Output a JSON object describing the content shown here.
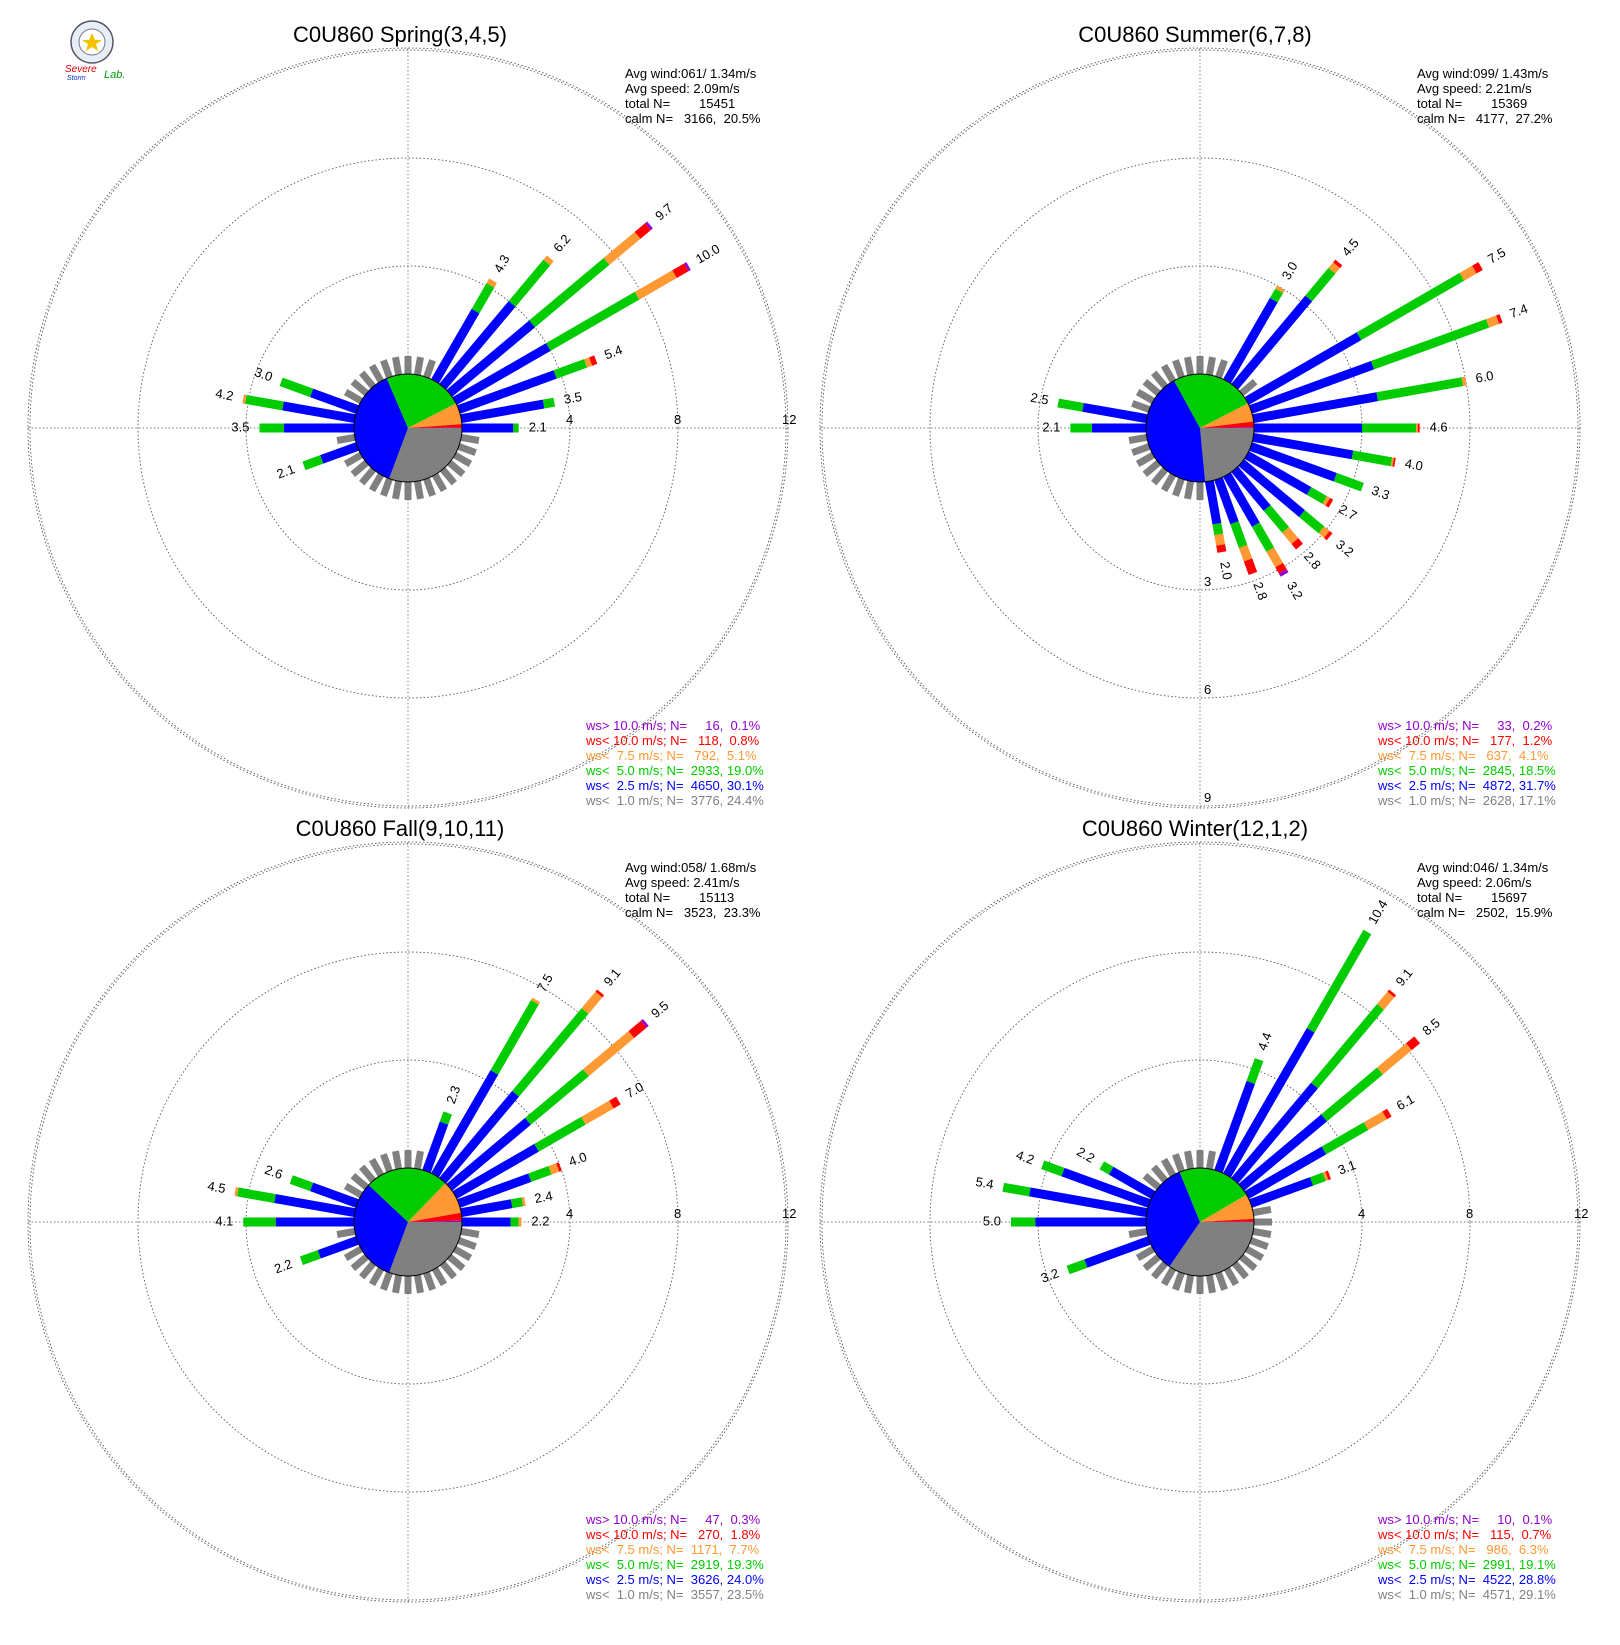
{
  "logo": {
    "name": "Severe Storm Lab.",
    "line1": "Severe",
    "line2": "Storm",
    "line3": "Lab."
  },
  "colors": {
    "gt10": "#9400D3",
    "lt10": "#FF0000",
    "lt7_5": "#FF9933",
    "lt5": "#00CC00",
    "lt2_5": "#0000FF",
    "lt1": "#808080"
  },
  "chart_data": [
    {
      "type": "wind_rose",
      "title": "C0U860 Spring(3,4,5)",
      "stats": [
        "Avg wind:061/ 1.34m/s",
        "Avg speed: 2.09m/s",
        "total N=        15451",
        "calm N=   3166,  20.5%"
      ],
      "ring_labels": [
        "4",
        "8",
        "12"
      ],
      "ring_values": [
        4,
        8,
        12
      ],
      "legend": [
        {
          "text": "ws> 10.0 m/s; N=     16,  0.1%",
          "color": "#9400D3"
        },
        {
          "text": "ws< 10.0 m/s; N=   118,  0.8%",
          "color": "#FF0000"
        },
        {
          "text": "ws<  7.5 m/s; N=   792,  5.1%",
          "color": "#FF9933"
        },
        {
          "text": "ws<  5.0 m/s; N=  2933, 19.0%",
          "color": "#00CC00"
        },
        {
          "text": "ws<  2.5 m/s; N=  4650, 30.1%",
          "color": "#0000FF"
        },
        {
          "text": "ws<  1.0 m/s; N=  3776, 24.4%",
          "color": "#808080"
        }
      ],
      "pie": [
        24.4,
        30.1,
        19.0,
        5.1,
        0.8,
        0.1
      ],
      "petals": [
        {
          "dir": 30,
          "total": 4.3,
          "label": "4.3",
          "segments": [
            3.0,
            1.1,
            0.2,
            0,
            0
          ]
        },
        {
          "dir": 40,
          "total": 6.2,
          "label": "6.2",
          "segments": [
            4.0,
            2.0,
            0.2,
            0,
            0
          ]
        },
        {
          "dir": 50,
          "total": 9.7,
          "label": "9.7",
          "segments": [
            4.0,
            3.6,
            1.5,
            0.5,
            0.1
          ]
        },
        {
          "dir": 60,
          "total": 10.0,
          "label": "10.0",
          "segments": [
            4.0,
            3.8,
            1.6,
            0.5,
            0.1
          ]
        },
        {
          "dir": 70,
          "total": 5.4,
          "label": "5.4",
          "segments": [
            3.8,
            1.2,
            0.2,
            0.2,
            0
          ]
        },
        {
          "dir": 80,
          "total": 3.5,
          "label": "3.5",
          "segments": [
            3.1,
            0.4,
            0,
            0,
            0
          ]
        },
        {
          "dir": 90,
          "total": 2.1,
          "label": "2.1",
          "segments": [
            1.9,
            0.2,
            0,
            0,
            0
          ]
        },
        {
          "dir": 270,
          "total": 3.5,
          "label": "3.5",
          "segments": [
            2.6,
            0.9,
            0,
            0,
            0
          ]
        },
        {
          "dir": 280,
          "total": 4.2,
          "label": "4.2",
          "segments": [
            2.7,
            1.4,
            0.1,
            0,
            0
          ]
        },
        {
          "dir": 290,
          "total": 3.0,
          "label": "3.0",
          "segments": [
            1.8,
            1.2,
            0,
            0,
            0
          ]
        },
        {
          "dir": 250,
          "total": 2.1,
          "label": "2.1",
          "segments": [
            1.4,
            0.7,
            0,
            0,
            0
          ]
        }
      ]
    },
    {
      "type": "wind_rose",
      "title": "C0U860 Summer(6,7,8)",
      "stats": [
        "Avg wind:099/ 1.43m/s",
        "Avg speed: 2.21m/s",
        "total N=        15369",
        "calm N=   4177,  27.2%"
      ],
      "ring_labels": [
        "3",
        "6",
        "9"
      ],
      "ring_values": [
        3,
        6,
        9
      ],
      "legend": [
        {
          "text": "ws> 10.0 m/s; N=     33,  0.2%",
          "color": "#9400D3"
        },
        {
          "text": "ws< 10.0 m/s; N=   177,  1.2%",
          "color": "#FF0000"
        },
        {
          "text": "ws<  7.5 m/s; N=   637,  4.1%",
          "color": "#FF9933"
        },
        {
          "text": "ws<  5.0 m/s; N=  2845, 18.5%",
          "color": "#00CC00"
        },
        {
          "text": "ws<  2.5 m/s; N=  4872, 31.7%",
          "color": "#0000FF"
        },
        {
          "text": "ws<  1.0 m/s; N=  2628, 17.1%",
          "color": "#808080"
        }
      ],
      "pie": [
        17.1,
        31.7,
        18.5,
        4.1,
        1.2,
        0.2
      ],
      "petals": [
        {
          "dir": 30,
          "total": 3.0,
          "label": "3.0",
          "segments": [
            2.6,
            0.3,
            0.1,
            0,
            0
          ]
        },
        {
          "dir": 40,
          "total": 4.5,
          "label": "4.5",
          "segments": [
            3.2,
            1.0,
            0.2,
            0.1,
            0
          ]
        },
        {
          "dir": 60,
          "total": 7.5,
          "label": "7.5",
          "segments": [
            3.6,
            3.3,
            0.4,
            0.2,
            0
          ]
        },
        {
          "dir": 70,
          "total": 7.4,
          "label": "7.4",
          "segments": [
            3.6,
            3.4,
            0.3,
            0.1,
            0
          ]
        },
        {
          "dir": 80,
          "total": 6.0,
          "label": "6.0",
          "segments": [
            3.5,
            2.4,
            0.1,
            0,
            0
          ]
        },
        {
          "dir": 90,
          "total": 4.6,
          "label": "4.6",
          "segments": [
            3.0,
            1.5,
            0.05,
            0.05,
            0
          ]
        },
        {
          "dir": 100,
          "total": 4.0,
          "label": "4.0",
          "segments": [
            2.8,
            1.1,
            0.05,
            0.05,
            0
          ]
        },
        {
          "dir": 110,
          "total": 3.3,
          "label": "3.3",
          "segments": [
            2.5,
            0.8,
            0,
            0,
            0
          ]
        },
        {
          "dir": 120,
          "total": 2.7,
          "label": "2.7",
          "segments": [
            2.0,
            0.5,
            0.1,
            0.1,
            0
          ]
        },
        {
          "dir": 130,
          "total": 3.2,
          "label": "3.2",
          "segments": [
            2.2,
            0.7,
            0.2,
            0.1,
            0
          ]
        },
        {
          "dir": 140,
          "total": 2.8,
          "label": "2.8",
          "segments": [
            1.4,
            0.8,
            0.4,
            0.2,
            0
          ]
        },
        {
          "dir": 150,
          "total": 3.2,
          "label": "3.2",
          "segments": [
            1.6,
            0.8,
            0.5,
            0.2,
            0.1
          ]
        },
        {
          "dir": 160,
          "total": 2.8,
          "label": "2.8",
          "segments": [
            1.3,
            0.7,
            0.4,
            0.4,
            0
          ]
        },
        {
          "dir": 170,
          "total": 2.0,
          "label": "2.0",
          "segments": [
            1.2,
            0.3,
            0.3,
            0.2,
            0
          ]
        },
        {
          "dir": 270,
          "total": 2.1,
          "label": "2.1",
          "segments": [
            1.5,
            0.6,
            0,
            0,
            0
          ]
        },
        {
          "dir": 280,
          "total": 2.5,
          "label": "2.5",
          "segments": [
            1.8,
            0.7,
            0,
            0,
            0
          ]
        }
      ]
    },
    {
      "type": "wind_rose",
      "title": "C0U860 Fall(9,10,11)",
      "stats": [
        "Avg wind:058/ 1.68m/s",
        "Avg speed: 2.41m/s",
        "total N=        15113",
        "calm N=   3523,  23.3%"
      ],
      "ring_labels": [
        "4",
        "8",
        "12"
      ],
      "ring_values": [
        4,
        8,
        12
      ],
      "legend": [
        {
          "text": "ws> 10.0 m/s; N=     47,  0.3%",
          "color": "#9400D3"
        },
        {
          "text": "ws< 10.0 m/s; N=   270,  1.8%",
          "color": "#FF0000"
        },
        {
          "text": "ws<  7.5 m/s; N=  1171,  7.7%",
          "color": "#FF9933"
        },
        {
          "text": "ws<  5.0 m/s; N=  2919, 19.3%",
          "color": "#00CC00"
        },
        {
          "text": "ws<  2.5 m/s; N=  3626, 24.0%",
          "color": "#0000FF"
        },
        {
          "text": "ws<  1.0 m/s; N=  3557, 23.5%",
          "color": "#808080"
        }
      ],
      "pie": [
        23.5,
        24.0,
        19.3,
        7.7,
        1.8,
        0.3
      ],
      "petals": [
        {
          "dir": 20,
          "total": 2.3,
          "label": "2.3",
          "segments": [
            1.9,
            0.4,
            0,
            0,
            0
          ]
        },
        {
          "dir": 30,
          "total": 7.5,
          "label": "7.5",
          "segments": [
            4.4,
            3.0,
            0.1,
            0,
            0
          ]
        },
        {
          "dir": 40,
          "total": 9.1,
          "label": "9.1",
          "segments": [
            4.2,
            4.0,
            0.8,
            0.1,
            0
          ]
        },
        {
          "dir": 50,
          "total": 9.5,
          "label": "9.5",
          "segments": [
            3.8,
            2.8,
            2.2,
            0.6,
            0.1
          ]
        },
        {
          "dir": 60,
          "total": 7.0,
          "label": "7.0",
          "segments": [
            3.5,
            2.0,
            1.2,
            0.3,
            0
          ]
        },
        {
          "dir": 70,
          "total": 4.0,
          "label": "4.0",
          "segments": [
            2.8,
            0.8,
            0.3,
            0.1,
            0
          ]
        },
        {
          "dir": 80,
          "total": 2.4,
          "label": "2.4",
          "segments": [
            1.9,
            0.4,
            0.1,
            0,
            0
          ]
        },
        {
          "dir": 90,
          "total": 2.2,
          "label": "2.2",
          "segments": [
            1.8,
            0.3,
            0.1,
            0,
            0
          ]
        },
        {
          "dir": 270,
          "total": 4.1,
          "label": "4.1",
          "segments": [
            2.9,
            1.2,
            0,
            0,
            0
          ]
        },
        {
          "dir": 280,
          "total": 4.5,
          "label": "4.5",
          "segments": [
            3.0,
            1.4,
            0.1,
            0,
            0
          ]
        },
        {
          "dir": 290,
          "total": 2.6,
          "label": "2.6",
          "segments": [
            1.8,
            0.8,
            0,
            0,
            0
          ]
        },
        {
          "dir": 250,
          "total": 2.2,
          "label": "2.2",
          "segments": [
            1.5,
            0.7,
            0,
            0,
            0
          ]
        }
      ]
    },
    {
      "type": "wind_rose",
      "title": "C0U860 Winter(12,1,2)",
      "stats": [
        "Avg wind:046/ 1.34m/s",
        "Avg speed: 2.06m/s",
        "total N=        15697",
        "calm N=   2502,  15.9%"
      ],
      "ring_labels": [
        "4",
        "8",
        "12"
      ],
      "ring_values": [
        4,
        8,
        12
      ],
      "legend": [
        {
          "text": "ws> 10.0 m/s; N=     10,  0.1%",
          "color": "#9400D3"
        },
        {
          "text": "ws< 10.0 m/s; N=   115,  0.7%",
          "color": "#FF0000"
        },
        {
          "text": "ws<  7.5 m/s; N=   986,  6.3%",
          "color": "#FF9933"
        },
        {
          "text": "ws<  5.0 m/s; N=  2991, 19.1%",
          "color": "#00CC00"
        },
        {
          "text": "ws<  2.5 m/s; N=  4522, 28.8%",
          "color": "#0000FF"
        },
        {
          "text": "ws<  1.0 m/s; N=  4571, 29.1%",
          "color": "#808080"
        }
      ],
      "pie": [
        29.1,
        28.8,
        19.1,
        6.3,
        0.7,
        0.1
      ],
      "petals": [
        {
          "dir": 20,
          "total": 4.4,
          "label": "4.4",
          "segments": [
            3.5,
            0.9,
            0,
            0,
            0
          ]
        },
        {
          "dir": 30,
          "total": 10.4,
          "label": "10.4",
          "segments": [
            6.2,
            4.2,
            0,
            0,
            0
          ]
        },
        {
          "dir": 40,
          "total": 9.1,
          "label": "9.1",
          "segments": [
            4.6,
            3.8,
            0.6,
            0.1,
            0
          ]
        },
        {
          "dir": 50,
          "total": 8.5,
          "label": "8.5",
          "segments": [
            4.0,
            2.7,
            1.4,
            0.4,
            0
          ]
        },
        {
          "dir": 60,
          "total": 6.1,
          "label": "6.1",
          "segments": [
            3.3,
            1.8,
            0.8,
            0.2,
            0
          ]
        },
        {
          "dir": 70,
          "total": 3.1,
          "label": "3.1",
          "segments": [
            2.4,
            0.5,
            0.1,
            0.1,
            0
          ]
        },
        {
          "dir": 270,
          "total": 5.0,
          "label": "5.0",
          "segments": [
            4.1,
            0.9,
            0,
            0,
            0
          ]
        },
        {
          "dir": 280,
          "total": 5.4,
          "label": "5.4",
          "segments": [
            4.4,
            1.0,
            0,
            0,
            0
          ]
        },
        {
          "dir": 290,
          "total": 4.2,
          "label": "4.2",
          "segments": [
            3.4,
            0.8,
            0,
            0,
            0
          ]
        },
        {
          "dir": 300,
          "total": 2.2,
          "label": "2.2",
          "segments": [
            1.8,
            0.4,
            0,
            0,
            0
          ]
        },
        {
          "dir": 250,
          "total": 3.2,
          "label": "3.2",
          "segments": [
            2.5,
            0.7,
            0,
            0,
            0
          ]
        }
      ]
    }
  ]
}
